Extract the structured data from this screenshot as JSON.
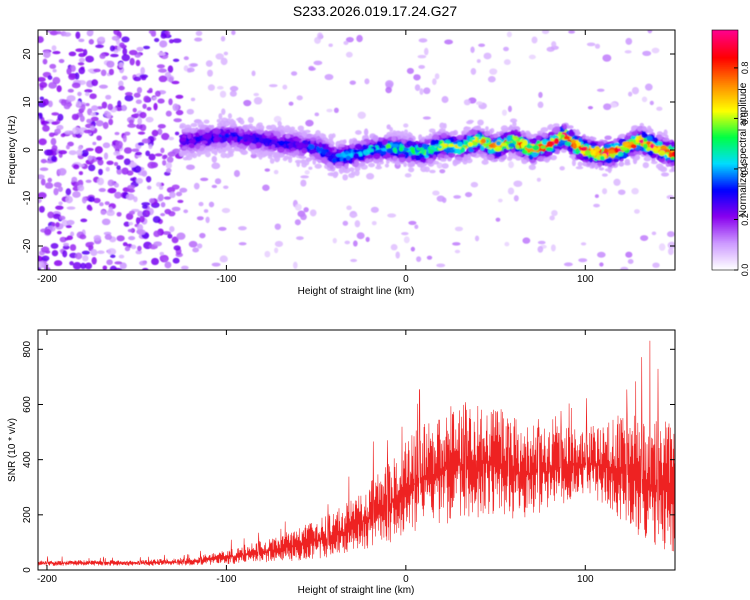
{
  "title": "S233.2026.019.17.24.G27",
  "colors": {
    "snr_line": "#ee2222",
    "axis": "#000000",
    "colormap": [
      "#ffffff",
      "#cc99ff",
      "#8800ee",
      "#0000ff",
      "#00ddff",
      "#00ff44",
      "#ffff00",
      "#ff8800",
      "#ff0000",
      "#ff0088"
    ]
  },
  "chart_data": [
    {
      "id": "spectrogram",
      "type": "heatmap",
      "title": "S233.2026.019.17.24.G27",
      "xlabel": "Height of straight line (km)",
      "ylabel": "Frequency (Hz)",
      "xlim": [
        -205,
        150
      ],
      "ylim": [
        -25,
        25
      ],
      "xticks": [
        -200,
        -100,
        0,
        100
      ],
      "yticks": [
        -20,
        -10,
        0,
        10,
        20
      ],
      "xtick_labels": [
        "-200",
        "-100",
        "0",
        "100"
      ],
      "ytick_labels": [
        "-20",
        "-10",
        "0",
        "10",
        "20"
      ],
      "ridge": {
        "description_key": "signal ridge frequency (Hz) vs height (km)",
        "x": [
          -120,
          -100,
          -80,
          -60,
          -50,
          -40,
          -30,
          -20,
          -10,
          0,
          10,
          20,
          30,
          40,
          50,
          60,
          70,
          80,
          88,
          95,
          100,
          110,
          120,
          130,
          140,
          150
        ],
        "freq": [
          2,
          3,
          2,
          1,
          0.5,
          -1.5,
          -1,
          0,
          0.5,
          0,
          -0.5,
          1,
          0.5,
          2,
          0.5,
          2,
          0,
          1,
          3,
          1,
          0,
          -1,
          0,
          2,
          0.5,
          -1
        ]
      },
      "colorbar": {
        "label": "Normalized spectral amplitude",
        "range": [
          0,
          0.95
        ],
        "ticks": [
          0,
          0.2,
          0.4,
          0.6,
          0.8
        ],
        "tick_labels": [
          "0.0",
          "0.2",
          "0.4",
          "0.6",
          "0.8"
        ]
      }
    },
    {
      "id": "snr",
      "type": "line",
      "xlabel": "Height of straight line (km)",
      "ylabel": "SNR (10 * v/v)",
      "xlim": [
        -205,
        150
      ],
      "ylim": [
        0,
        870
      ],
      "xticks": [
        -200,
        -100,
        0,
        100
      ],
      "yticks": [
        0,
        200,
        400,
        600,
        800
      ],
      "xtick_labels": [
        "-200",
        "-100",
        "0",
        "100"
      ],
      "ytick_labels": [
        "0",
        "200",
        "400",
        "600",
        "800"
      ],
      "envelope": {
        "x": [
          -205,
          -150,
          -120,
          -100,
          -80,
          -60,
          -40,
          -25,
          -10,
          0,
          10,
          20,
          30,
          40,
          50,
          60,
          70,
          80,
          90,
          100,
          110,
          120,
          130,
          140,
          150
        ],
        "mean": [
          25,
          25,
          30,
          45,
          65,
          90,
          120,
          170,
          230,
          290,
          330,
          360,
          380,
          390,
          380,
          360,
          350,
          360,
          375,
          385,
          380,
          360,
          330,
          300,
          280
        ],
        "spread": [
          12,
          12,
          18,
          30,
          50,
          70,
          100,
          130,
          170,
          200,
          230,
          250,
          250,
          250,
          240,
          220,
          200,
          180,
          160,
          150,
          180,
          230,
          260,
          280,
          280
        ],
        "max": [
          50,
          50,
          60,
          110,
          150,
          200,
          300,
          420,
          560,
          620,
          700,
          720,
          680,
          640,
          600,
          560,
          540,
          560,
          600,
          640,
          680,
          740,
          800,
          860,
          700
        ]
      }
    }
  ]
}
